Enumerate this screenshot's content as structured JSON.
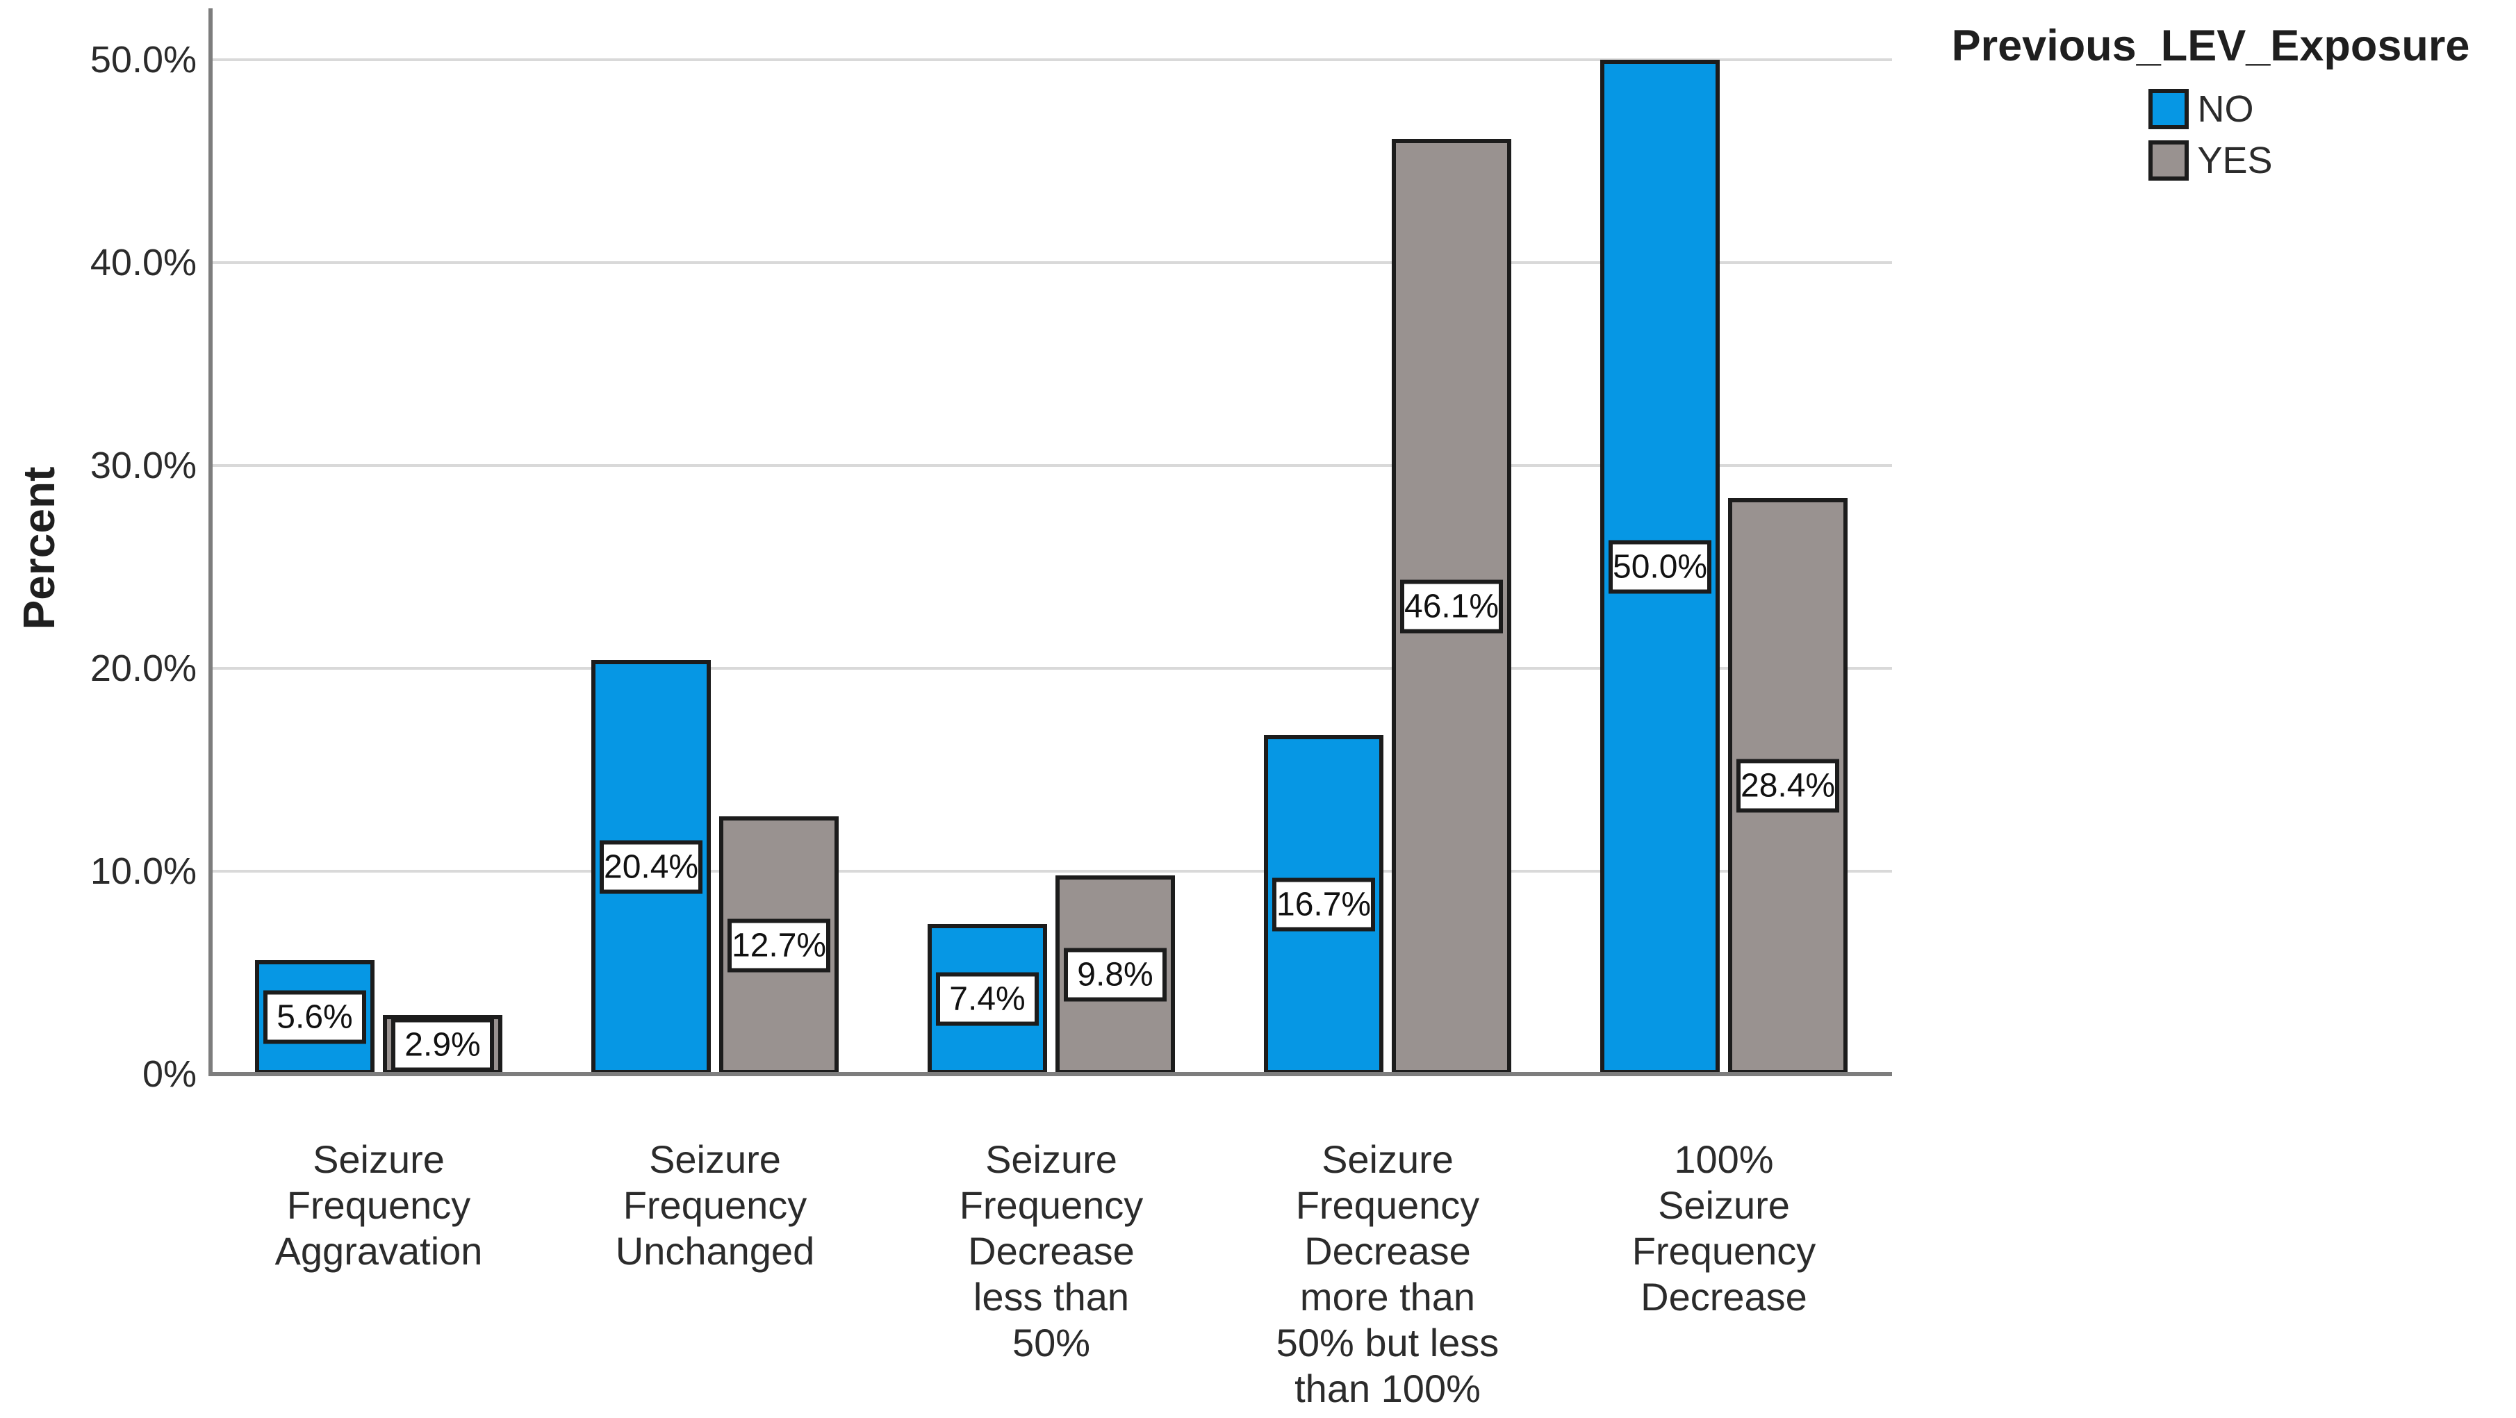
{
  "y_axis": {
    "title": "Percent",
    "ticks": [
      {
        "label": "50.0%",
        "value": 50
      },
      {
        "label": "40.0%",
        "value": 40
      },
      {
        "label": "30.0%",
        "value": 30
      },
      {
        "label": "20.0%",
        "value": 20
      },
      {
        "label": "10.0%",
        "value": 10
      },
      {
        "label": "0%",
        "value": 0
      }
    ]
  },
  "legend": {
    "title": "Previous_LEV_Exposure",
    "items": [
      {
        "label": "NO",
        "color": "#0697e4"
      },
      {
        "label": "YES",
        "color": "#999290"
      }
    ]
  },
  "colors": {
    "no_bar": "#0697e4",
    "yes_bar": "#999290",
    "bar_border": "#1c1c1c",
    "gridline": "#d9d9d9",
    "axis": "#7d7d7d"
  },
  "chart_data": {
    "type": "bar",
    "title": "",
    "xlabel": "",
    "ylabel": "Percent",
    "ylim": [
      0,
      50
    ],
    "grid": true,
    "legend_position": "top-right",
    "categories": [
      "Seizure\nFrequency\nAggravation",
      "Seizure\nFrequency\nUnchanged",
      "Seizure\nFrequency\nDecrease\nless than\n50%",
      "Seizure\nFrequency\nDecrease\nmore than\n50% but less\nthan 100%",
      "100%\nSeizure\nFrequency\nDecrease"
    ],
    "series": [
      {
        "name": "NO",
        "color": "#0697e4",
        "values": [
          5.6,
          20.4,
          7.4,
          16.7,
          50.0
        ],
        "value_labels": [
          "5.6%",
          "20.4%",
          "7.4%",
          "16.7%",
          "50.0%"
        ]
      },
      {
        "name": "YES",
        "color": "#999290",
        "values": [
          2.9,
          12.7,
          9.8,
          46.1,
          28.4
        ],
        "value_labels": [
          "2.9%",
          "12.7%",
          "9.8%",
          "46.1%",
          "28.4%"
        ]
      }
    ]
  }
}
